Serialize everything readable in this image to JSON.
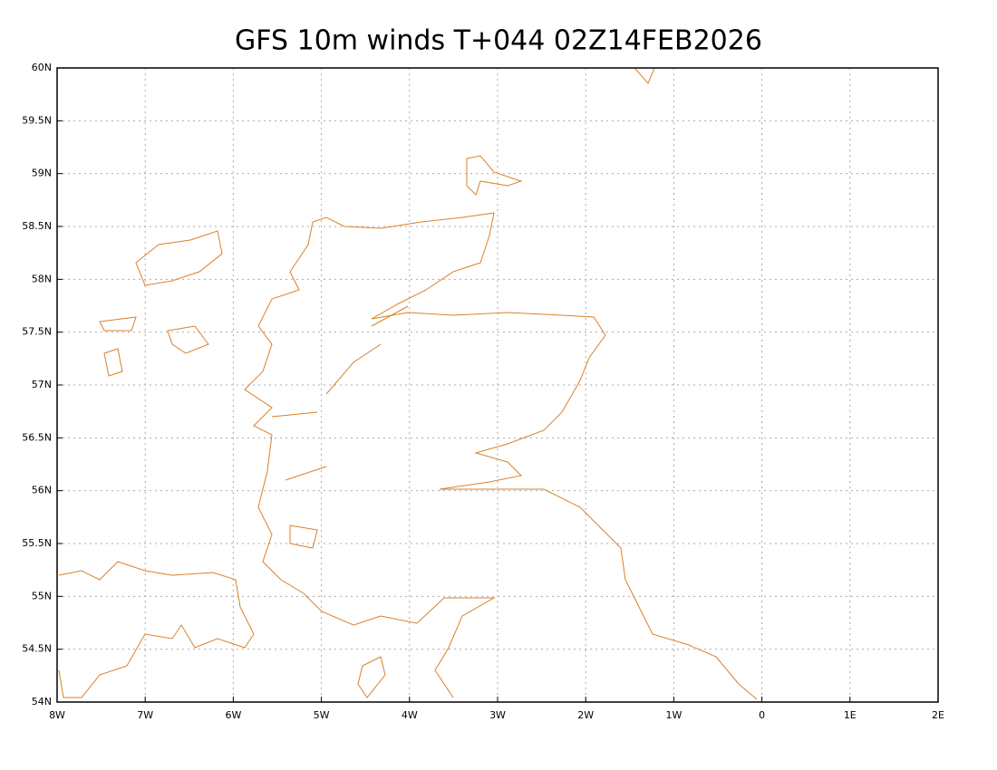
{
  "title": "GFS 10m winds T+044 02Z14FEB2026",
  "map": {
    "xlim": [
      -8,
      2
    ],
    "ylim": [
      54,
      60
    ],
    "xticks": [
      {
        "value": -8,
        "label": "8W"
      },
      {
        "value": -7,
        "label": "7W"
      },
      {
        "value": -6,
        "label": "6W"
      },
      {
        "value": -5,
        "label": "5W"
      },
      {
        "value": -4,
        "label": "4W"
      },
      {
        "value": -3,
        "label": "3W"
      },
      {
        "value": -2,
        "label": "2W"
      },
      {
        "value": -1,
        "label": "1W"
      },
      0,
      {
        "value": 1,
        "label": "1E"
      },
      {
        "value": 2,
        "label": "2E"
      }
    ],
    "yticks": [
      {
        "value": 54,
        "label": "54N"
      },
      {
        "value": 54.5,
        "label": "54.5N"
      },
      {
        "value": 55,
        "label": "55N"
      },
      {
        "value": 55.5,
        "label": "55.5N"
      },
      {
        "value": 56,
        "label": "56N"
      },
      {
        "value": 56.5,
        "label": "56.5N"
      },
      {
        "value": 57,
        "label": "57N"
      },
      {
        "value": 57.5,
        "label": "57.5N"
      },
      {
        "value": 58,
        "label": "58N"
      },
      {
        "value": 58.5,
        "label": "58.5N"
      },
      {
        "value": 59,
        "label": "59N"
      },
      {
        "value": 59.5,
        "label": "59.5N"
      },
      {
        "value": 60,
        "label": "60N"
      }
    ],
    "grid": true
  }
}
